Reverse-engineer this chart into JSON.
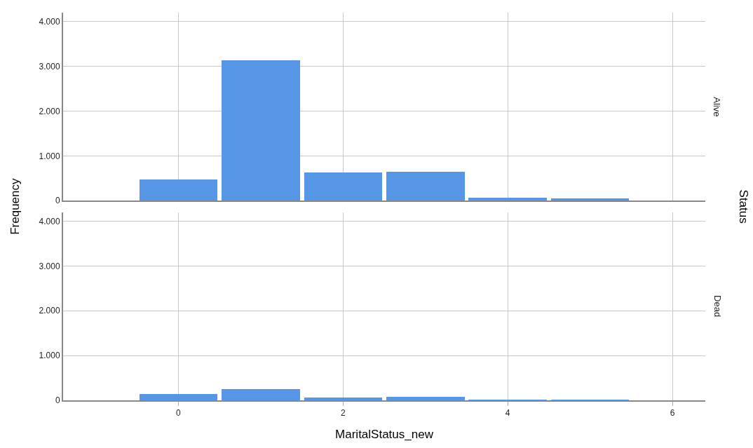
{
  "chart_data": [
    {
      "type": "histogram",
      "ylabel": "Frequency",
      "annotations": [
        "Alive",
        "Status"
      ],
      "bins": [
        -0.5,
        0.5,
        1.5,
        2.5,
        3.5,
        4.5,
        5.5
      ],
      "values": [
        480,
        3130,
        630,
        650,
        60,
        50
      ],
      "color": "#5596e6",
      "xlim": [
        -1.4,
        6.4
      ],
      "xticks": [
        0,
        2,
        4,
        6
      ],
      "ylim": [
        0,
        4200
      ],
      "yticks": [
        {
          "value": 0,
          "label": "0"
        },
        {
          "value": 1000,
          "label": "1.000"
        },
        {
          "value": 2000,
          "label": "2.000"
        },
        {
          "value": 3000,
          "label": "3.000"
        },
        {
          "value": 4000,
          "label": "4.000"
        }
      ],
      "grid": true,
      "tick_labels": "y"
    },
    {
      "type": "histogram",
      "annotations": [
        "Dead"
      ],
      "xlabel": "MaritalStatus_new",
      "bins": [
        -0.5,
        0.5,
        1.5,
        2.5,
        3.5,
        4.5,
        5.5
      ],
      "values": [
        140,
        250,
        60,
        80,
        10,
        10
      ],
      "color": "#5596e6",
      "xlim": [
        -1.4,
        6.4
      ],
      "xticks": [
        0,
        2,
        4,
        6
      ],
      "ylim": [
        0,
        4200
      ],
      "yticks": [
        {
          "value": 0,
          "label": "0"
        },
        {
          "value": 1000,
          "label": "1.000"
        },
        {
          "value": 2000,
          "label": "2.000"
        },
        {
          "value": 3000,
          "label": "3.000"
        },
        {
          "value": 4000,
          "label": "4.000"
        }
      ],
      "grid": true
    }
  ]
}
